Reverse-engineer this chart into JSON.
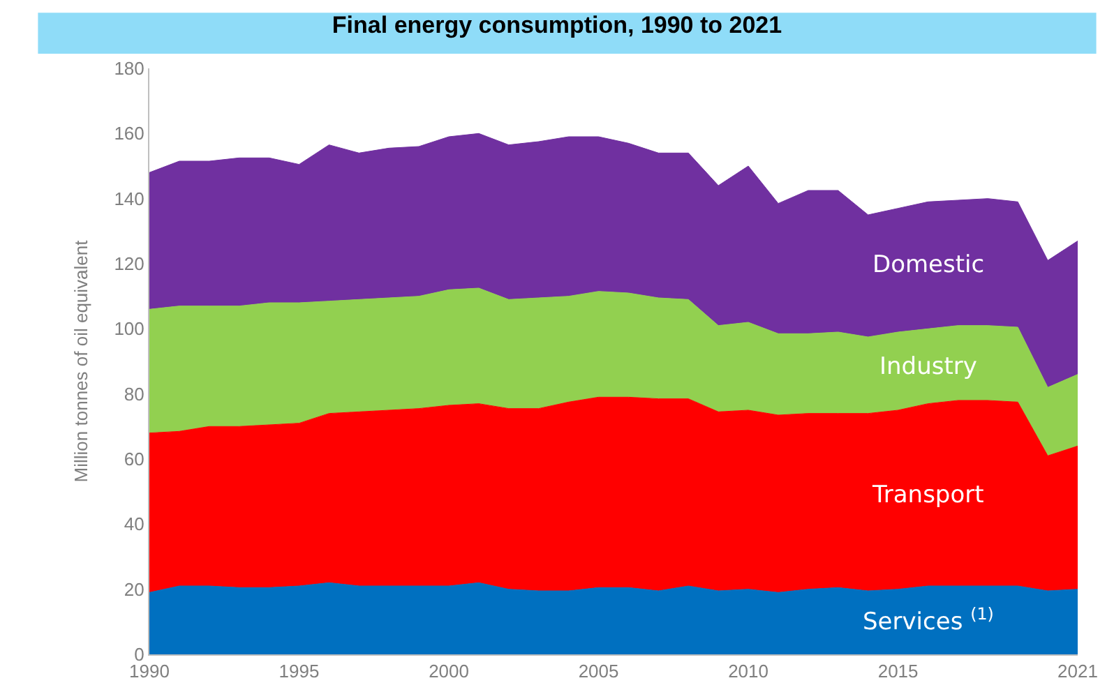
{
  "chart_data": {
    "type": "area",
    "title": "Final energy consumption, 1990 to 2021",
    "ylabel": "Million tonnes of oil equivalent",
    "stacked": true,
    "x": [
      1990,
      1991,
      1992,
      1993,
      1994,
      1995,
      1996,
      1997,
      1998,
      1999,
      2000,
      2001,
      2002,
      2003,
      2004,
      2005,
      2006,
      2007,
      2008,
      2009,
      2010,
      2011,
      2012,
      2013,
      2014,
      2015,
      2016,
      2017,
      2018,
      2019,
      2020,
      2021
    ],
    "series": [
      {
        "name": "Services $^{(1)}$",
        "color": "#0070c0",
        "values": [
          19,
          21,
          21,
          20.5,
          20.5,
          21,
          22,
          21,
          21,
          21,
          21,
          22,
          20,
          19.5,
          19.5,
          20.5,
          20.5,
          19.5,
          21,
          19.5,
          20,
          19,
          20,
          20.5,
          19.5,
          20,
          21,
          21,
          21,
          21,
          19.5,
          20
        ]
      },
      {
        "name": "Transport",
        "color": "#ff0000",
        "values": [
          49,
          47.5,
          49,
          49.5,
          50,
          50,
          52,
          53.5,
          54,
          54.5,
          55.5,
          55,
          55.5,
          56,
          58,
          58.5,
          58.5,
          59,
          57.5,
          55,
          55,
          54.5,
          54,
          53.5,
          54.5,
          55,
          56,
          57,
          57,
          56.5,
          41.5,
          44
        ]
      },
      {
        "name": "Industry",
        "color": "#92d050",
        "values": [
          38,
          38.5,
          37,
          37,
          37.5,
          37,
          34.5,
          34.5,
          34.5,
          34.5,
          35.5,
          35.5,
          33.5,
          34,
          32.5,
          32.5,
          32,
          31,
          30.5,
          26.5,
          27,
          25,
          24.5,
          25,
          23.5,
          24,
          23,
          23,
          23,
          23,
          21,
          22
        ]
      },
      {
        "name": "Domestic",
        "color": "#7030a0",
        "values": [
          42,
          44.5,
          44.5,
          45.5,
          44.5,
          42.5,
          48,
          45,
          46,
          46,
          47,
          47.5,
          47.5,
          48,
          49,
          47.5,
          46,
          44.5,
          45,
          43,
          48,
          40,
          44,
          43.5,
          37.5,
          38,
          39,
          38.5,
          39,
          38.5,
          39,
          41
        ]
      }
    ],
    "xlim": [
      1990,
      2021
    ],
    "xticks": [
      1990,
      1995,
      2000,
      2005,
      2010,
      2015,
      2021
    ],
    "ylim": [
      0,
      180
    ],
    "yticks": [
      0,
      20,
      40,
      60,
      80,
      100,
      120,
      140,
      160,
      180
    ],
    "legend": false
  }
}
